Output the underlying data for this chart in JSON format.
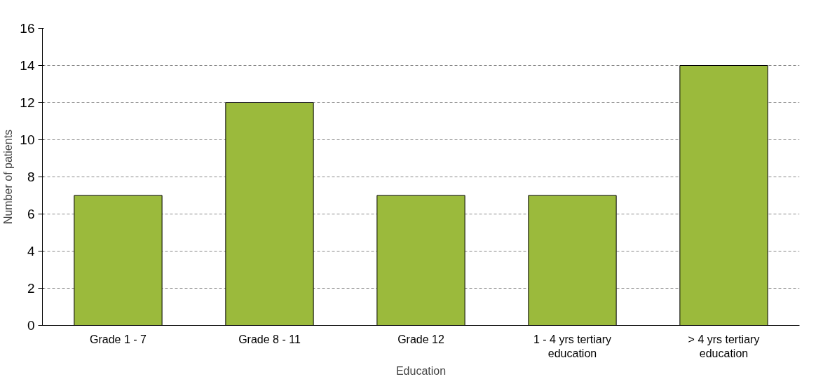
{
  "chart_data": {
    "type": "bar",
    "xlabel": "Education",
    "ylabel": "Number of patients",
    "categories": [
      "Grade 1 - 7",
      "Grade 8 - 11",
      "Grade 12",
      "1 - 4 yrs tertiary\neducation",
      "> 4 yrs tertiary\neducation"
    ],
    "values": [
      7,
      12,
      7,
      7,
      14
    ],
    "color": "#9bba3c",
    "ylim": [
      0,
      16
    ],
    "yticks": [
      0,
      2,
      4,
      6,
      8,
      10,
      12,
      14,
      16
    ],
    "grid": "y"
  }
}
